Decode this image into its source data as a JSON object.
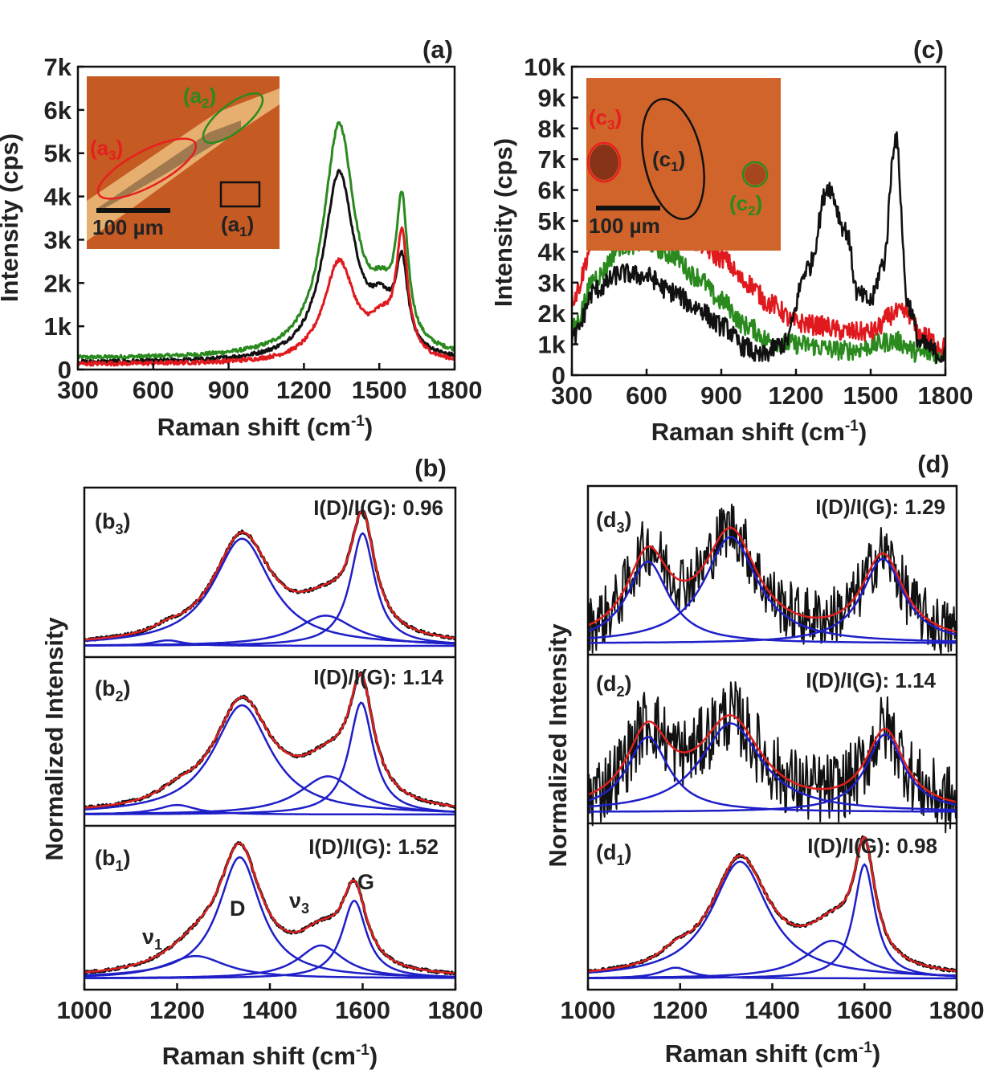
{
  "colors": {
    "black": "#111111",
    "green": "#2a8a1e",
    "red": "#e0191e",
    "fit": "#e02020",
    "peak": "#1f1fc8",
    "inset_bg": "#c85a1e"
  },
  "panels": {
    "a": {
      "label": "(a)",
      "xlabel": "Raman shift (cm",
      "xlabel_sup": "-1",
      "xlabel_end": ")",
      "ylabel": "Intensity (cps)",
      "xticks": [
        "300",
        "600",
        "900",
        "1200",
        "1500",
        "1800"
      ],
      "yticks": [
        "0",
        "1k",
        "2k",
        "3k",
        "4k",
        "5k",
        "6k",
        "7k"
      ],
      "inset": {
        "scalebar": "100 µm",
        "labels": [
          {
            "base": "(a",
            "sub": "2",
            "end": ")",
            "color": "green"
          },
          {
            "base": "(a",
            "sub": "3",
            "end": ")",
            "color": "red"
          },
          {
            "base": "(a",
            "sub": "1",
            "end": ")",
            "color": "black"
          }
        ]
      }
    },
    "c": {
      "label": "(c)",
      "xlabel": "Raman shift (cm",
      "xlabel_sup": "-1",
      "xlabel_end": ")",
      "ylabel": "Intensity (cps)",
      "xticks": [
        "300",
        "600",
        "900",
        "1200",
        "1500",
        "1800"
      ],
      "yticks": [
        "0",
        "1k",
        "2k",
        "3k",
        "4k",
        "5k",
        "6k",
        "7k",
        "8k",
        "9k",
        "10k"
      ],
      "inset": {
        "scalebar": "100 µm",
        "labels": [
          {
            "base": "(c",
            "sub": "3",
            "end": ")",
            "color": "red"
          },
          {
            "base": "(c",
            "sub": "1",
            "end": ")",
            "color": "black"
          },
          {
            "base": "(c",
            "sub": "2",
            "end": ")",
            "color": "green"
          }
        ]
      }
    },
    "b": {
      "label": "(b)",
      "xlabel": "Raman shift (cm",
      "xlabel_sup": "-1",
      "xlabel_end": ")",
      "ylabel": "Normalized Intensity",
      "xticks": [
        "1000",
        "1200",
        "1400",
        "1600",
        "1800"
      ],
      "subpanels": [
        {
          "base": "(b",
          "sub": "3",
          "end": ")",
          "ratio": "I(D)/I(G): 0.96"
        },
        {
          "base": "(b",
          "sub": "2",
          "end": ")",
          "ratio": "I(D)/I(G): 1.14"
        },
        {
          "base": "(b",
          "sub": "1",
          "end": ")",
          "ratio": "I(D)/I(G): 1.52"
        }
      ],
      "peak_labels": {
        "v1": "ν",
        "v1_sub": "1",
        "D": "D",
        "v3": "ν",
        "v3_sub": "3",
        "G": "G"
      }
    },
    "d": {
      "label": "(d)",
      "xlabel": "Raman shift (cm",
      "xlabel_sup": "-1",
      "xlabel_end": ")",
      "ylabel": "Normalized Intensity",
      "xticks": [
        "1000",
        "1200",
        "1400",
        "1600",
        "1800"
      ],
      "subpanels": [
        {
          "base": "(d",
          "sub": "3",
          "end": ")",
          "ratio": "I(D)/I(G): 1.29"
        },
        {
          "base": "(d",
          "sub": "2",
          "end": ")",
          "ratio": "I(D)/I(G): 1.14"
        },
        {
          "base": "(d",
          "sub": "1",
          "end": ")",
          "ratio": "I(D)/I(G): 0.98"
        }
      ]
    }
  },
  "chart_data": [
    {
      "panel": "a",
      "type": "line",
      "xlim": [
        300,
        1800
      ],
      "ylim": [
        0,
        7000
      ],
      "series": [
        {
          "color": "green",
          "peaks": [
            [
              1340,
              5300,
              75
            ],
            [
              1590,
              3100,
              28
            ],
            [
              1510,
              900,
              60
            ]
          ],
          "baseline": 250
        },
        {
          "color": "black",
          "peaks": [
            [
              1340,
              4300,
              75
            ],
            [
              1590,
              1900,
              28
            ],
            [
              1510,
              900,
              60
            ]
          ],
          "baseline": 150
        },
        {
          "color": "red",
          "peaks": [
            [
              1340,
              2300,
              75
            ],
            [
              1590,
              2700,
              28
            ],
            [
              1510,
              700,
              60
            ]
          ],
          "baseline": 120
        }
      ]
    },
    {
      "panel": "c",
      "type": "line",
      "xlim": [
        300,
        1800
      ],
      "ylim": [
        0,
        10000
      ],
      "series": [
        {
          "color": "black",
          "points": [
            [
              300,
              1200
            ],
            [
              400,
              2800
            ],
            [
              500,
              3300
            ],
            [
              600,
              3200
            ],
            [
              700,
              2700
            ],
            [
              800,
              2200
            ],
            [
              900,
              1600
            ],
            [
              1000,
              900
            ],
            [
              1050,
              600
            ],
            [
              1150,
              1000
            ],
            [
              1250,
              3500
            ],
            [
              1330,
              6100
            ],
            [
              1400,
              4700
            ],
            [
              1450,
              2600
            ],
            [
              1500,
              2400
            ],
            [
              1550,
              3600
            ],
            [
              1600,
              7700
            ],
            [
              1650,
              2300
            ],
            [
              1700,
              1000
            ],
            [
              1800,
              600
            ]
          ]
        },
        {
          "color": "green",
          "points": [
            [
              300,
              1500
            ],
            [
              400,
              3200
            ],
            [
              500,
              4200
            ],
            [
              600,
              4300
            ],
            [
              700,
              3900
            ],
            [
              800,
              3200
            ],
            [
              900,
              2400
            ],
            [
              1000,
              1600
            ],
            [
              1100,
              1100
            ],
            [
              1200,
              1000
            ],
            [
              1400,
              800
            ],
            [
              1600,
              1100
            ],
            [
              1700,
              700
            ],
            [
              1800,
              700
            ]
          ]
        },
        {
          "color": "red",
          "points": [
            [
              300,
              2500
            ],
            [
              400,
              4500
            ],
            [
              500,
              5000
            ],
            [
              600,
              5000
            ],
            [
              700,
              4800
            ],
            [
              800,
              4300
            ],
            [
              900,
              3800
            ],
            [
              1000,
              3000
            ],
            [
              1100,
              2300
            ],
            [
              1200,
              1700
            ],
            [
              1300,
              1600
            ],
            [
              1400,
              1400
            ],
            [
              1500,
              1400
            ],
            [
              1600,
              2000
            ],
            [
              1650,
              2000
            ],
            [
              1700,
              1300
            ],
            [
              1800,
              900
            ]
          ]
        }
      ]
    },
    {
      "panel": "b3",
      "type": "line",
      "xlim": [
        1000,
        1800
      ],
      "components": [
        [
          1180,
          0.04,
          40
        ],
        [
          1340,
          0.78,
          75
        ],
        [
          1520,
          0.22,
          75
        ],
        [
          1600,
          0.82,
          32
        ]
      ],
      "noise": 0.01
    },
    {
      "panel": "b2",
      "type": "line",
      "xlim": [
        1000,
        1800
      ],
      "components": [
        [
          1200,
          0.07,
          50
        ],
        [
          1340,
          0.8,
          75
        ],
        [
          1525,
          0.28,
          75
        ],
        [
          1597,
          0.82,
          32
        ]
      ],
      "noise": 0.01
    },
    {
      "panel": "b1",
      "type": "line",
      "xlim": [
        1000,
        1800
      ],
      "components": [
        [
          1240,
          0.17,
          80
        ],
        [
          1335,
          0.92,
          55
        ],
        [
          1510,
          0.25,
          60
        ],
        [
          1582,
          0.59,
          32
        ]
      ],
      "noise": 0.01
    },
    {
      "panel": "d3",
      "type": "line",
      "xlim": [
        1000,
        1800
      ],
      "components": [
        [
          1130,
          0.6,
          55
        ],
        [
          1310,
          0.78,
          70
        ],
        [
          1640,
          0.62,
          55
        ]
      ],
      "noise": 0.1
    },
    {
      "panel": "d2",
      "type": "line",
      "xlim": [
        1000,
        1800
      ],
      "components": [
        [
          1130,
          0.55,
          55
        ],
        [
          1310,
          0.65,
          80
        ],
        [
          1645,
          0.57,
          50
        ]
      ],
      "noise": 0.12
    },
    {
      "panel": "d1",
      "type": "line",
      "xlim": [
        1000,
        1800
      ],
      "components": [
        [
          1190,
          0.08,
          40
        ],
        [
          1330,
          0.87,
          75
        ],
        [
          1530,
          0.28,
          70
        ],
        [
          1600,
          0.85,
          28
        ]
      ],
      "noise": 0.01
    }
  ]
}
